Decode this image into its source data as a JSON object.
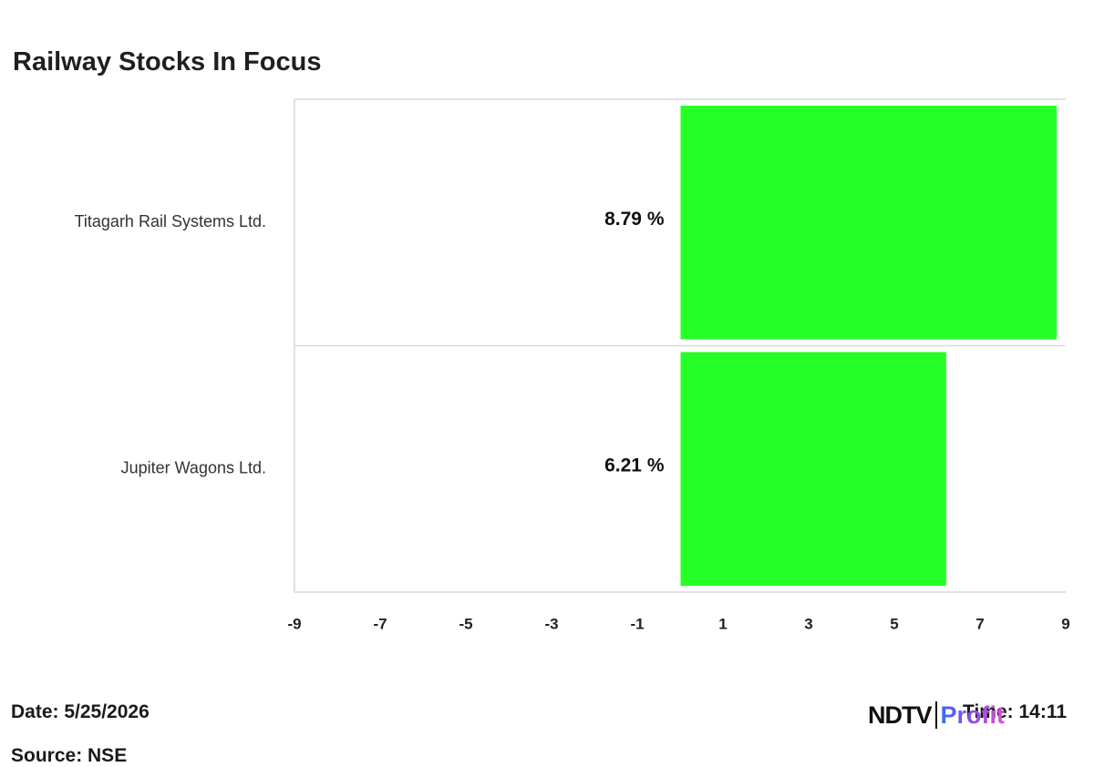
{
  "title": "Railway Stocks In Focus",
  "chart_data": {
    "type": "bar",
    "orientation": "horizontal",
    "title": "Railway Stocks In Focus",
    "categories": [
      "Titagarh Rail Systems Ltd.",
      "Jupiter Wagons Ltd."
    ],
    "values": [
      8.79,
      6.21
    ],
    "data_labels": [
      "8.79 %",
      "6.21 %"
    ],
    "x_ticks": [
      -9,
      -7,
      -5,
      -3,
      -1,
      1,
      3,
      5,
      7,
      9
    ],
    "x_tick_labels": [
      "-9",
      "-7",
      "-5",
      "-3",
      "-1",
      "1",
      "3",
      "5",
      "7",
      "9"
    ],
    "xlim": [
      -9,
      9
    ],
    "grid": false,
    "legend": "none",
    "bar_color": "#26ff26",
    "border_color": "#d9d9d9"
  },
  "footer": {
    "date": "Date: 5/25/2026",
    "source": "Source: NSE",
    "time": "Time: 14:11"
  },
  "logo": {
    "ndtv": "NDTV",
    "profit": "Profit"
  }
}
